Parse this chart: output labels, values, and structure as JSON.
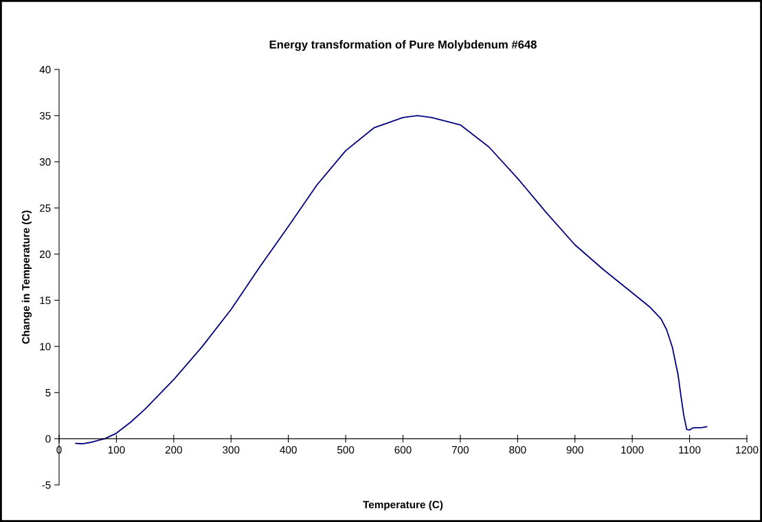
{
  "chart_data": {
    "type": "line",
    "title": "Energy transformation of Pure Molybdenum #648",
    "xlabel": "Temperature (C)",
    "ylabel": "Change in Temperature (C)",
    "series": [
      {
        "color": "#000080",
        "x": [
          29,
          40,
          55,
          70,
          80,
          100,
          125,
          150,
          175,
          200,
          250,
          300,
          350,
          400,
          450,
          500,
          550,
          600,
          625,
          650,
          700,
          750,
          800,
          850,
          900,
          950,
          1000,
          1030,
          1050,
          1060,
          1070,
          1080,
          1085,
          1090,
          1095,
          1100,
          1105,
          1110,
          1120,
          1130
        ],
        "values": [
          -0.5,
          -0.55,
          -0.4,
          -0.15,
          0.0,
          0.6,
          1.8,
          3.2,
          4.8,
          6.4,
          10.0,
          14.0,
          18.6,
          23.0,
          27.5,
          31.2,
          33.7,
          34.8,
          35.0,
          34.8,
          34.0,
          31.6,
          28.2,
          24.5,
          21.0,
          18.3,
          15.8,
          14.3,
          13.0,
          11.8,
          9.9,
          6.9,
          4.6,
          2.5,
          1.0,
          0.95,
          1.15,
          1.2,
          1.2,
          1.3
        ]
      }
    ],
    "xlim": [
      0,
      1200
    ],
    "xticks": [
      0,
      100,
      200,
      300,
      400,
      500,
      600,
      700,
      800,
      900,
      1000,
      1100,
      1200
    ],
    "ylim": [
      -5,
      40
    ],
    "yticks": [
      -5,
      0,
      5,
      10,
      15,
      20,
      25,
      30,
      35,
      40
    ],
    "grid": false,
    "legend": false,
    "marker": "none",
    "line_style": "solid"
  }
}
